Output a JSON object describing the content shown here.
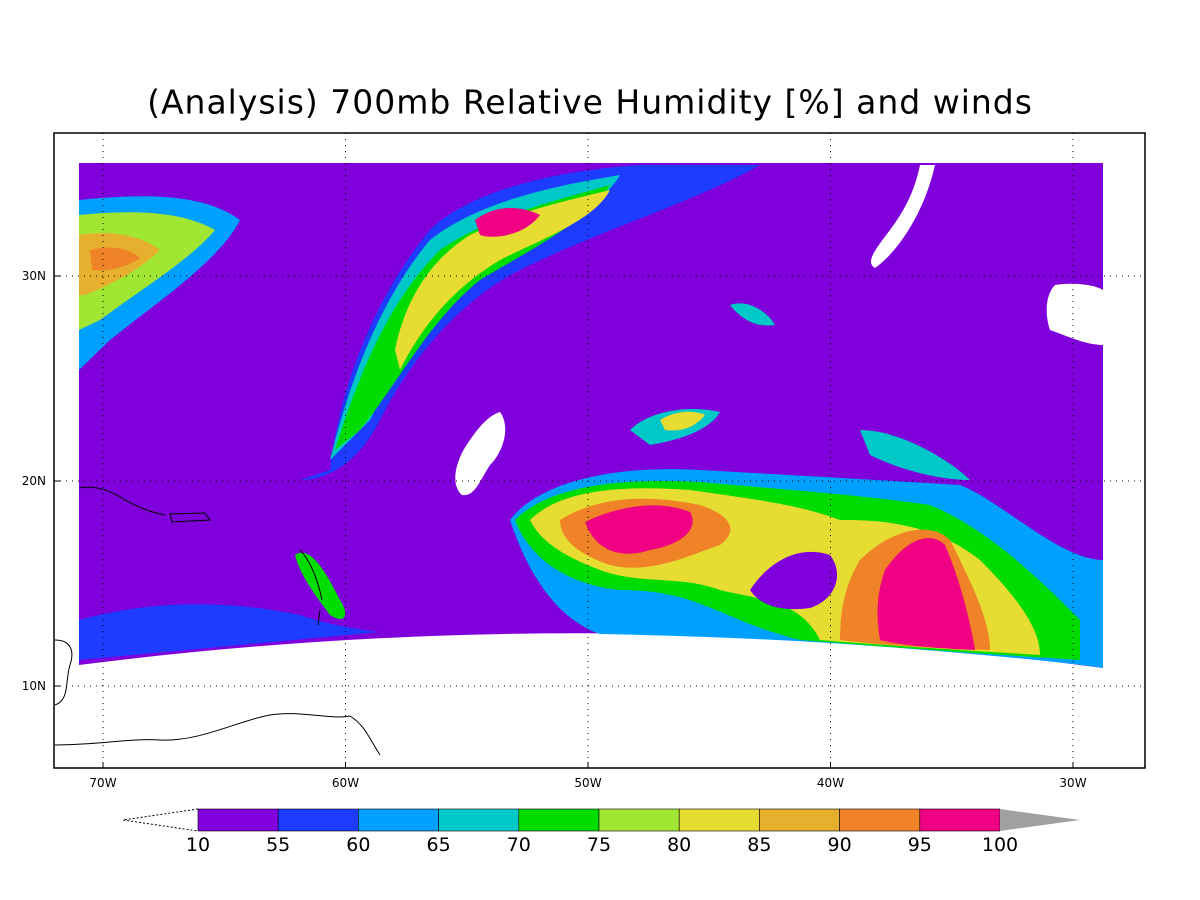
{
  "title": "(Analysis) 700mb Relative Humidity [%] and winds",
  "x_axis": {
    "labels": [
      "70W",
      "60W",
      "50W",
      "40W",
      "30W"
    ]
  },
  "y_axis": {
    "labels": [
      "30N",
      "20N",
      "10N"
    ]
  },
  "colorbar": {
    "levels": [
      10,
      55,
      60,
      65,
      70,
      75,
      80,
      85,
      90,
      95,
      100
    ],
    "colors": [
      "#8000dc",
      "#1e3cff",
      "#00a0ff",
      "#00c8c8",
      "#00dc00",
      "#a0e632",
      "#e6dc32",
      "#e6af2d",
      "#f08228",
      "#f00082"
    ],
    "over_color": "#a0a0a0"
  }
}
